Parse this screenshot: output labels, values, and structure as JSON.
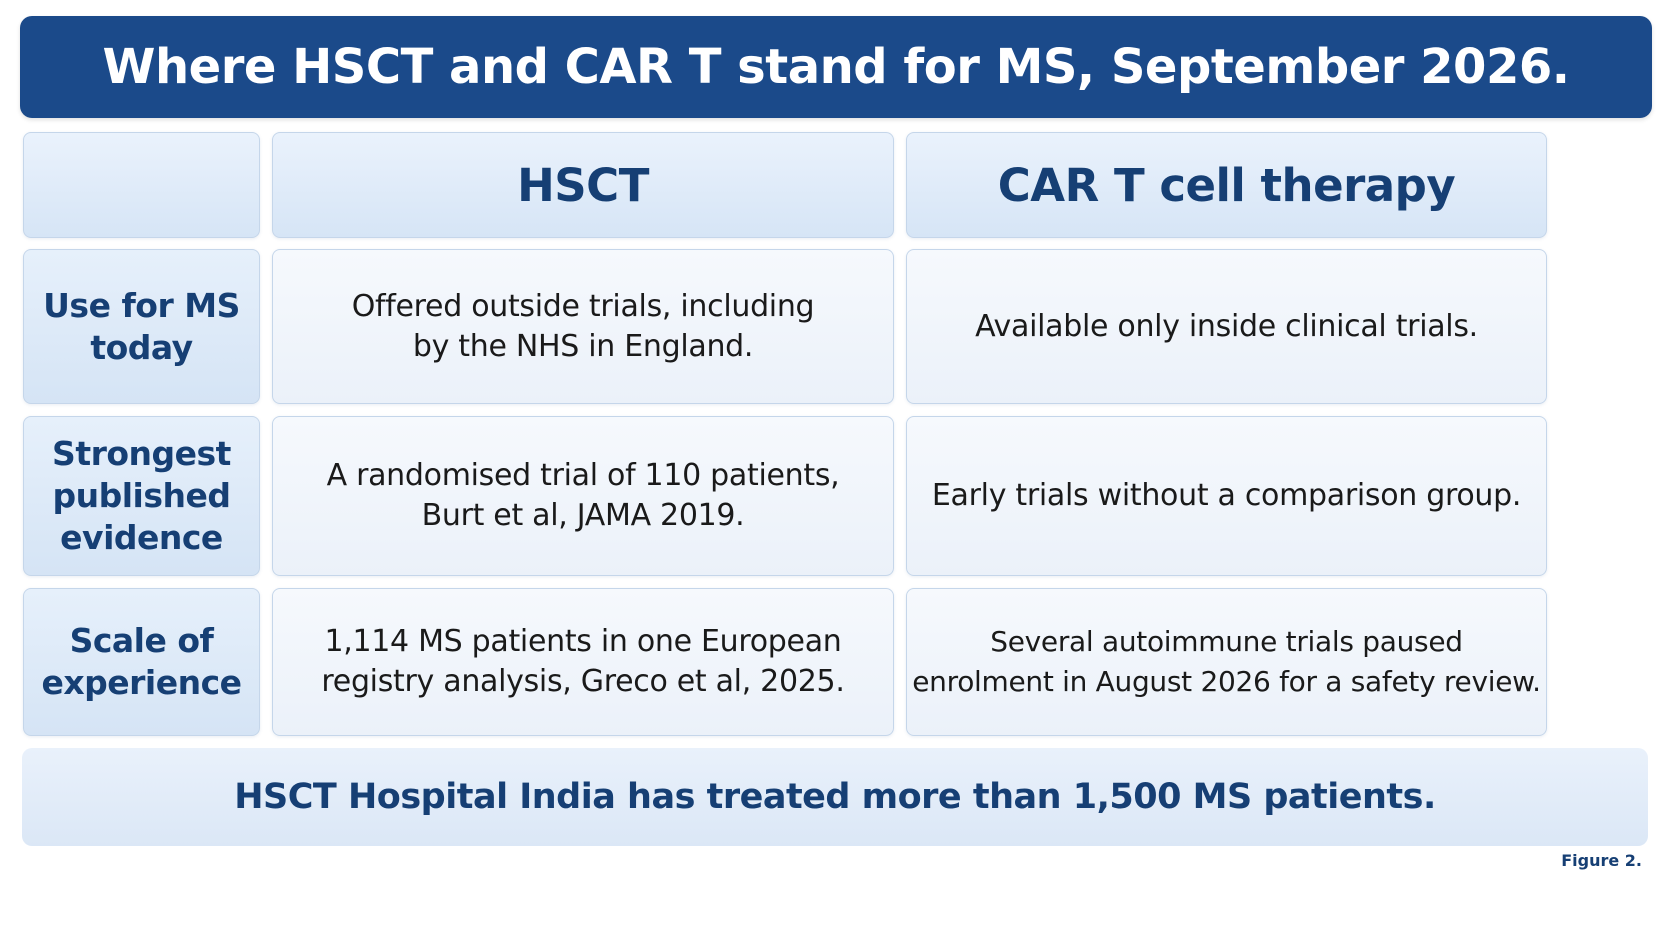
{
  "title": "Where HSCT and CAR T stand for MS, September 2026.",
  "columns": {
    "empty": "",
    "hsct": "HSCT",
    "cart": "CAR T cell therapy"
  },
  "rows": [
    {
      "label_lines": [
        "Use for MS",
        "today"
      ],
      "hsct_lines": [
        "Offered outside trials, including",
        "by the NHS in England."
      ],
      "cart_lines": [
        "Available only inside clinical trials."
      ]
    },
    {
      "label_lines": [
        "Strongest",
        "published",
        "evidence"
      ],
      "hsct_lines": [
        "A randomised trial of 110 patients,",
        "Burt et al, JAMA 2019."
      ],
      "cart_lines": [
        "Early trials without a comparison group."
      ]
    },
    {
      "label_lines": [
        "Scale of",
        "experience"
      ],
      "hsct_lines": [
        "1,114 MS patients in one European",
        "registry analysis, Greco et al, 2025."
      ],
      "cart_lines": [
        "Several autoimmune trials paused",
        "enrolment in August 2026 for a safety review."
      ]
    }
  ],
  "footer": "HSCT Hospital India has treated more than 1,500 MS patients.",
  "figure_label": "Figure 2.",
  "colors": {
    "title_bg": "#1b4a8a",
    "heading_text": "#163f74",
    "cell_border": "#c5d6ea"
  }
}
